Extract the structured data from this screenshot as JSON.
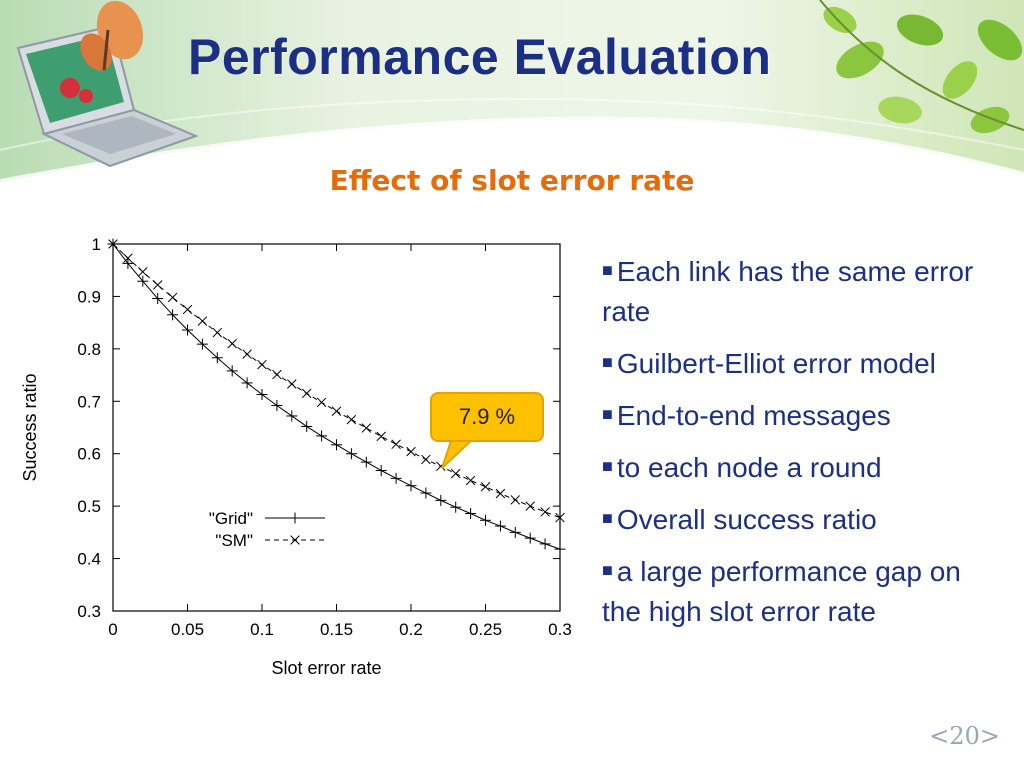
{
  "slide": {
    "title": "Performance Evaluation",
    "subtitle": "Effect of slot error rate",
    "page_number": "<20>",
    "callout": "7.9 %",
    "bullets": [
      "Each link has the same error rate",
      "Guilbert-Elliot error model",
      "End-to-end messages",
      "to each node a round",
      "Overall success ratio",
      "a large performance gap on the high slot error rate"
    ],
    "colors": {
      "title": "#1c2f86",
      "subtitle": "#e46c0a",
      "bullet_text": "#1c2f86",
      "callout_fill": "#ffc000"
    }
  },
  "chart_data": {
    "type": "line",
    "title": "",
    "xlabel": "Slot error rate",
    "ylabel": "Success ratio",
    "xlim": [
      0,
      0.3
    ],
    "ylim": [
      0.3,
      1
    ],
    "xticks": [
      0,
      0.05,
      0.1,
      0.15,
      0.2,
      0.25,
      0.3
    ],
    "xtick_labels": [
      "0",
      "0.05",
      "0.1",
      "0.15",
      "0.2",
      "0.25",
      "0.3"
    ],
    "yticks": [
      0.3,
      0.4,
      0.5,
      0.6,
      0.7,
      0.8,
      0.9,
      1
    ],
    "ytick_labels": [
      "0.3",
      "0.4",
      "0.5",
      "0.6",
      "0.7",
      "0.8",
      "0.9",
      "1"
    ],
    "grid": false,
    "legend_position": "bottom-left",
    "x": [
      0,
      0.01,
      0.02,
      0.03,
      0.04,
      0.05,
      0.06,
      0.07,
      0.08,
      0.09,
      0.1,
      0.11,
      0.12,
      0.13,
      0.14,
      0.15,
      0.16,
      0.17,
      0.18,
      0.19,
      0.2,
      0.21,
      0.22,
      0.23,
      0.24,
      0.25,
      0.26,
      0.27,
      0.28,
      0.29,
      0.3
    ],
    "series": [
      {
        "name": "\"Grid\"",
        "marker": "+",
        "line": "solid",
        "values": [
          1.0,
          0.963,
          0.929,
          0.896,
          0.865,
          0.836,
          0.809,
          0.783,
          0.758,
          0.735,
          0.713,
          0.692,
          0.672,
          0.652,
          0.634,
          0.617,
          0.6,
          0.584,
          0.568,
          0.553,
          0.539,
          0.525,
          0.511,
          0.498,
          0.486,
          0.473,
          0.462,
          0.45,
          0.439,
          0.428,
          0.418
        ]
      },
      {
        "name": "\"SM\"",
        "marker": "x",
        "line": "dashed",
        "values": [
          1.0,
          0.973,
          0.947,
          0.922,
          0.898,
          0.875,
          0.853,
          0.831,
          0.81,
          0.79,
          0.77,
          0.751,
          0.733,
          0.715,
          0.698,
          0.681,
          0.665,
          0.649,
          0.633,
          0.618,
          0.604,
          0.589,
          0.576,
          0.562,
          0.549,
          0.537,
          0.524,
          0.512,
          0.5,
          0.489,
          0.478
        ]
      }
    ]
  }
}
